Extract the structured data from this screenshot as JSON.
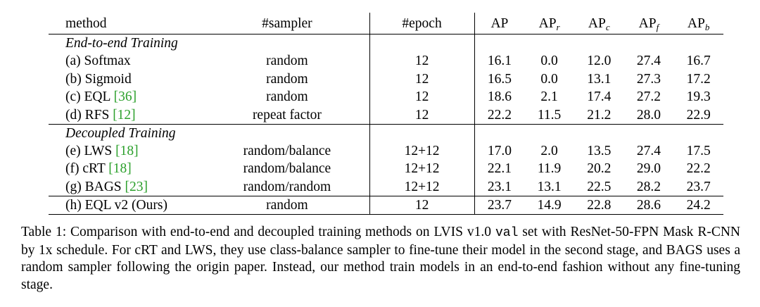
{
  "table": {
    "headers": {
      "method": "method",
      "sampler": "#sampler",
      "epoch": "#epoch",
      "ap": "AP",
      "ap_r": {
        "base": "AP",
        "sub": "r"
      },
      "ap_c": {
        "base": "AP",
        "sub": "c"
      },
      "ap_f": {
        "base": "AP",
        "sub": "f"
      },
      "ap_b": {
        "base": "AP",
        "sub": "b"
      }
    },
    "sections": {
      "end_to_end": "End-to-end Training",
      "decoupled": "Decoupled Training"
    },
    "rows": [
      {
        "method": "(a) Softmax",
        "cite": "",
        "sampler": "random",
        "epoch": "12",
        "ap": "16.1",
        "ap_r": "0.0",
        "ap_c": "12.0",
        "ap_f": "27.4",
        "ap_b": "16.7"
      },
      {
        "method": "(b) Sigmoid",
        "cite": "",
        "sampler": "random",
        "epoch": "12",
        "ap": "16.5",
        "ap_r": "0.0",
        "ap_c": "13.1",
        "ap_f": "27.3",
        "ap_b": "17.2"
      },
      {
        "method": "(c) EQL ",
        "cite": "[36]",
        "sampler": "random",
        "epoch": "12",
        "ap": "18.6",
        "ap_r": "2.1",
        "ap_c": "17.4",
        "ap_f": "27.2",
        "ap_b": "19.3"
      },
      {
        "method": "(d) RFS ",
        "cite": "[12]",
        "sampler": "repeat factor",
        "epoch": "12",
        "ap": "22.2",
        "ap_r": "11.5",
        "ap_c": "21.2",
        "ap_f": "28.0",
        "ap_b": "22.9"
      },
      {
        "method": "(e) LWS ",
        "cite": "[18]",
        "sampler": "random/balance",
        "epoch": "12+12",
        "ap": "17.0",
        "ap_r": "2.0",
        "ap_c": "13.5",
        "ap_f": "27.4",
        "ap_b": "17.5"
      },
      {
        "method": "(f) cRT ",
        "cite": "[18]",
        "sampler": "random/balance",
        "epoch": "12+12",
        "ap": "22.1",
        "ap_r": "11.9",
        "ap_c": "20.2",
        "ap_f": "29.0",
        "ap_b": "22.2"
      },
      {
        "method": "(g) BAGS ",
        "cite": "[23]",
        "sampler": "random/random",
        "epoch": "12+12",
        "ap": "23.1",
        "ap_r": "13.1",
        "ap_c": "22.5",
        "ap_f": "28.2",
        "ap_b": "23.7"
      },
      {
        "method": "(h) EQL v2 (Ours)",
        "cite": "",
        "sampler": "random",
        "epoch": "12",
        "ap": "23.7",
        "ap_r": "14.9",
        "ap_c": "22.8",
        "ap_f": "28.6",
        "ap_b": "24.2"
      }
    ]
  },
  "caption": {
    "before_code": "Table 1: Comparison with end-to-end and decoupled training methods on LVIS v1.0 ",
    "code": "val",
    "after_code": " set with ResNet-50-FPN Mask R-CNN by 1x schedule. For cRT and LWS, they use class-balance sampler to fine-tune their model in the second stage, and BAGS uses a random sampler following the origin paper. Instead, our method train models in an end-to-end fashion without any fine-tuning stage."
  },
  "colors": {
    "citation": "#2ca02c",
    "text": "#000000"
  }
}
